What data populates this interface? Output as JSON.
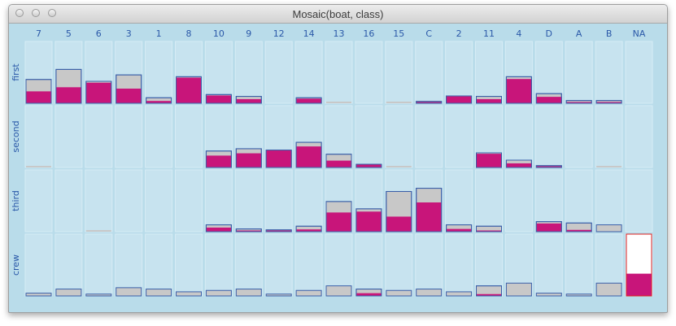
{
  "window": {
    "title": "Mosaic(boat, class)"
  },
  "colors": {
    "background": "#b9dcea",
    "cell": "#c7e3ef",
    "total_fill": "#c8c8c8",
    "highlight_fill": "#c8157a",
    "border": "#3a5fa8",
    "label": "#2a58a8",
    "selected_border": "#e0201f"
  },
  "chart_data": {
    "type": "mosaic",
    "title": "Mosaic(boat, class)",
    "x_variable": "boat",
    "y_variable": "class",
    "categories": [
      "7",
      "5",
      "6",
      "3",
      "1",
      "8",
      "10",
      "9",
      "12",
      "14",
      "13",
      "16",
      "15",
      "C",
      "2",
      "11",
      "4",
      "D",
      "A",
      "B",
      "NA"
    ],
    "rows": [
      "first",
      "second",
      "third",
      "crew"
    ],
    "row_max_fraction": 0.74,
    "total": [
      [
        0.52,
        0.74,
        0.48,
        0.62,
        0.12,
        0.58,
        0.19,
        0.15,
        0,
        0.12,
        0.01,
        0,
        0.01,
        0.04,
        0.16,
        0.15,
        0.58,
        0.21,
        0.06,
        0.06,
        0
      ],
      [
        0.01,
        0,
        0,
        0,
        0,
        0,
        0.36,
        0.41,
        0.38,
        0.55,
        0.29,
        0.07,
        0.01,
        0,
        0,
        0.32,
        0.16,
        0.04,
        0,
        0.01,
        0
      ],
      [
        0,
        0,
        0.01,
        0,
        0,
        0,
        0.15,
        0.06,
        0.04,
        0.12,
        0.66,
        0.5,
        0.88,
        0.95,
        0.15,
        0.12,
        0,
        0.22,
        0.19,
        0.15,
        0
      ],
      [
        0.06,
        0.15,
        0.04,
        0.18,
        0.15,
        0.09,
        0.12,
        0.15,
        0.04,
        0.12,
        0.22,
        0.15,
        0.12,
        0.15,
        0.09,
        0.22,
        0.28,
        0.06,
        0.04,
        0.28,
        1
      ]
    ],
    "highlighted": [
      [
        0.26,
        0.35,
        0.45,
        0.32,
        0.05,
        0.56,
        0.17,
        0.09,
        0,
        0.1,
        0,
        0,
        0,
        0.02,
        0.15,
        0.09,
        0.53,
        0.14,
        0.02,
        0.02,
        0
      ],
      [
        0,
        0,
        0,
        0,
        0,
        0,
        0.26,
        0.31,
        0.38,
        0.46,
        0.15,
        0.07,
        0,
        0,
        0,
        0.3,
        0.09,
        0.02,
        0,
        0,
        0
      ],
      [
        0,
        0,
        0,
        0,
        0,
        0,
        0.09,
        0.01,
        0.02,
        0.05,
        0.42,
        0.44,
        0.33,
        0.64,
        0.06,
        0.01,
        0,
        0.18,
        0.04,
        0,
        0
      ],
      [
        0,
        0,
        0,
        0,
        0,
        0,
        0,
        0,
        0,
        0,
        0,
        0.06,
        0,
        0,
        0,
        0.04,
        0,
        0,
        0,
        0,
        0.36
      ]
    ],
    "selected_cell": {
      "row": "crew",
      "category": "NA"
    }
  }
}
